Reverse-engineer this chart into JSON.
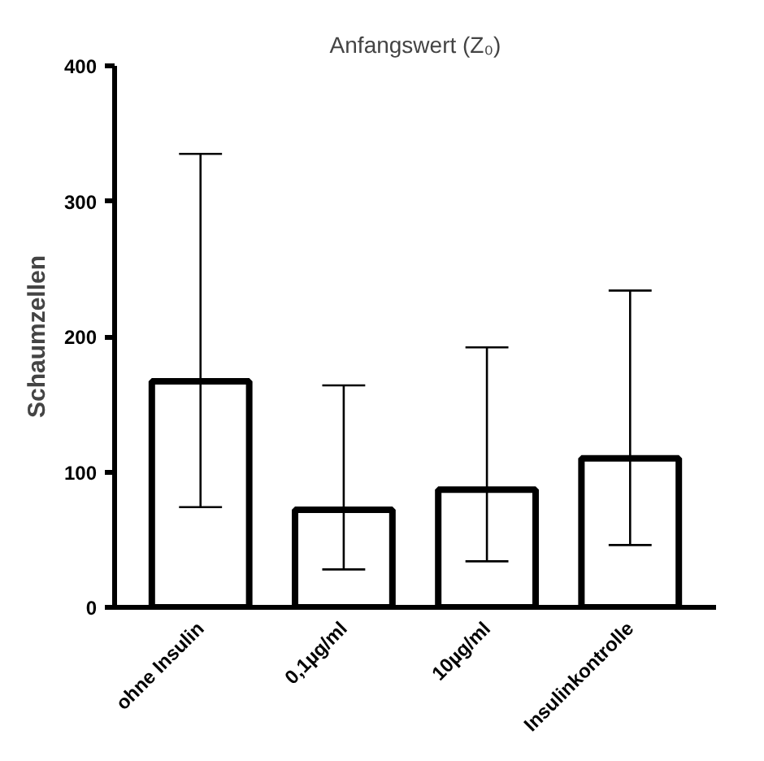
{
  "chart_data": {
    "type": "bar",
    "title": "Anfangswert (Z₀)",
    "ylabel": "Schaumzellen",
    "categories": [
      "ohne Insulin",
      "0,1µg/ml",
      "10µg/ml",
      "Insulinkontrolle"
    ],
    "series": [
      {
        "color": "#ffffff",
        "values": [
          167,
          72,
          87,
          110
        ],
        "errors": [
          [
            74,
            335
          ],
          [
            28,
            164
          ],
          [
            34,
            192
          ],
          [
            46,
            234
          ]
        ]
      }
    ],
    "ylim": [
      0,
      400
    ],
    "yticks": [
      0,
      100,
      200,
      300,
      400
    ],
    "grid": false
  }
}
